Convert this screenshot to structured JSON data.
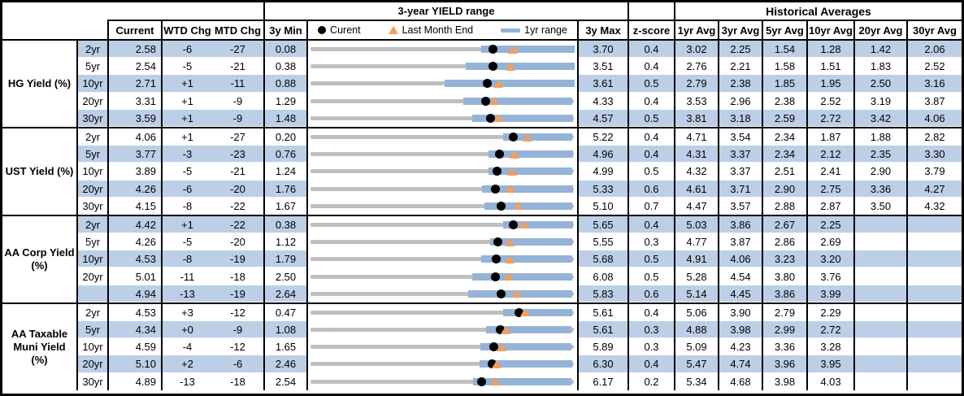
{
  "header": {
    "chart_group_title": "3-year YIELD range",
    "historical_group_title": "Historical Averages",
    "columns": {
      "current": "Current",
      "wtd": "WTD Chg",
      "mtd": "MTD Chg",
      "min3y": "3y Min",
      "max3y": "3y Max",
      "zscore": "z-score",
      "avg1": "1yr Avg",
      "avg3": "3yr Avg",
      "avg5": "5yr Avg",
      "avg10": "10yr Avg",
      "avg20": "20yr Avg",
      "avg30": "30yr Avg"
    },
    "legend": {
      "current": "Curent",
      "last_month_end": "Last Month End",
      "range_1yr": "1yr range"
    }
  },
  "colors": {
    "stripe": "#BCCFE6",
    "bar_1yr_range": "#95B3D7",
    "track_3yr_range": "#BFBFBF",
    "marker_last_month_end": "#F49E5C",
    "marker_current": "#000000"
  },
  "sections": [
    {
      "label": "HG Yield (%)",
      "rows": [
        {
          "tenor": "2yr",
          "current": "2.58",
          "wtd": "-6",
          "mtd": "-27",
          "min3y": "0.08",
          "max3y": "3.70",
          "zscore": "0.4",
          "avg1": "3.02",
          "avg3": "2.25",
          "avg5": "1.54",
          "avg10": "1.28",
          "avg20": "1.42",
          "avg30": "2.06"
        },
        {
          "tenor": "5yr",
          "current": "2.54",
          "wtd": "-5",
          "mtd": "-21",
          "min3y": "0.38",
          "max3y": "3.51",
          "zscore": "0.4",
          "avg1": "2.76",
          "avg3": "2.21",
          "avg5": "1.58",
          "avg10": "1.51",
          "avg20": "1.83",
          "avg30": "2.52"
        },
        {
          "tenor": "10yr",
          "current": "2.71",
          "wtd": "+1",
          "mtd": "-11",
          "min3y": "0.88",
          "max3y": "3.61",
          "zscore": "0.5",
          "avg1": "2.79",
          "avg3": "2.38",
          "avg5": "1.85",
          "avg10": "1.95",
          "avg20": "2.50",
          "avg30": "3.16"
        },
        {
          "tenor": "20yr",
          "current": "3.31",
          "wtd": "+1",
          "mtd": "-9",
          "min3y": "1.29",
          "max3y": "4.33",
          "zscore": "0.4",
          "avg1": "3.53",
          "avg3": "2.96",
          "avg5": "2.38",
          "avg10": "2.52",
          "avg20": "3.19",
          "avg30": "3.87"
        },
        {
          "tenor": "30yr",
          "current": "3.59",
          "wtd": "+1",
          "mtd": "-9",
          "min3y": "1.48",
          "max3y": "4.57",
          "zscore": "0.5",
          "avg1": "3.81",
          "avg3": "3.18",
          "avg5": "2.59",
          "avg10": "2.72",
          "avg20": "3.42",
          "avg30": "4.06"
        }
      ]
    },
    {
      "label": "UST Yield (%)",
      "rows": [
        {
          "tenor": "2yr",
          "current": "4.06",
          "wtd": "+1",
          "mtd": "-27",
          "min3y": "0.20",
          "max3y": "5.22",
          "zscore": "0.4",
          "avg1": "4.71",
          "avg3": "3.54",
          "avg5": "2.34",
          "avg10": "1.87",
          "avg20": "1.88",
          "avg30": "2.82"
        },
        {
          "tenor": "5yr",
          "current": "3.77",
          "wtd": "-3",
          "mtd": "-23",
          "min3y": "0.76",
          "max3y": "4.96",
          "zscore": "0.4",
          "avg1": "4.31",
          "avg3": "3.37",
          "avg5": "2.34",
          "avg10": "2.12",
          "avg20": "2.35",
          "avg30": "3.30"
        },
        {
          "tenor": "10yr",
          "current": "3.89",
          "wtd": "-5",
          "mtd": "-21",
          "min3y": "1.24",
          "max3y": "4.99",
          "zscore": "0.5",
          "avg1": "4.32",
          "avg3": "3.37",
          "avg5": "2.51",
          "avg10": "2.41",
          "avg20": "2.90",
          "avg30": "3.79"
        },
        {
          "tenor": "20yr",
          "current": "4.26",
          "wtd": "-6",
          "mtd": "-20",
          "min3y": "1.76",
          "max3y": "5.33",
          "zscore": "0.6",
          "avg1": "4.61",
          "avg3": "3.71",
          "avg5": "2.90",
          "avg10": "2.75",
          "avg20": "3.36",
          "avg30": "4.27"
        },
        {
          "tenor": "30yr",
          "current": "4.15",
          "wtd": "-8",
          "mtd": "-22",
          "min3y": "1.67",
          "max3y": "5.10",
          "zscore": "0.7",
          "avg1": "4.47",
          "avg3": "3.57",
          "avg5": "2.88",
          "avg10": "2.87",
          "avg20": "3.50",
          "avg30": "4.32"
        }
      ]
    },
    {
      "label": "AA Corp Yield\n(%)",
      "rows": [
        {
          "tenor": "2yr",
          "current": "4.42",
          "wtd": "+1",
          "mtd": "-22",
          "min3y": "0.38",
          "max3y": "5.65",
          "zscore": "0.4",
          "avg1": "5.03",
          "avg3": "3.86",
          "avg5": "2.67",
          "avg10": "2.25",
          "avg20": "",
          "avg30": ""
        },
        {
          "tenor": "5yr",
          "current": "4.26",
          "wtd": "-5",
          "mtd": "-20",
          "min3y": "1.12",
          "max3y": "5.55",
          "zscore": "0.3",
          "avg1": "4.77",
          "avg3": "3.87",
          "avg5": "2.86",
          "avg10": "2.69",
          "avg20": "",
          "avg30": ""
        },
        {
          "tenor": "10yr",
          "current": "4.53",
          "wtd": "-8",
          "mtd": "-19",
          "min3y": "1.79",
          "max3y": "5.68",
          "zscore": "0.5",
          "avg1": "4.91",
          "avg3": "4.06",
          "avg5": "3.23",
          "avg10": "3.20",
          "avg20": "",
          "avg30": ""
        },
        {
          "tenor": "20yr",
          "current": "5.01",
          "wtd": "-11",
          "mtd": "-18",
          "min3y": "2.50",
          "max3y": "6.08",
          "zscore": "0.5",
          "avg1": "5.28",
          "avg3": "4.54",
          "avg5": "3.80",
          "avg10": "3.76",
          "avg20": "",
          "avg30": ""
        },
        {
          "tenor": "",
          "current": "4.94",
          "wtd": "-13",
          "mtd": "-19",
          "min3y": "2.64",
          "max3y": "5.83",
          "zscore": "0.6",
          "avg1": "5.14",
          "avg3": "4.45",
          "avg5": "3.86",
          "avg10": "3.99",
          "avg20": "",
          "avg30": ""
        }
      ]
    },
    {
      "label": "AA Taxable\nMuni Yield\n(%)",
      "rows": [
        {
          "tenor": "2yr",
          "current": "4.53",
          "wtd": "+3",
          "mtd": "-12",
          "min3y": "0.47",
          "max3y": "5.61",
          "zscore": "0.4",
          "avg1": "5.06",
          "avg3": "3.90",
          "avg5": "2.79",
          "avg10": "2.29",
          "avg20": "",
          "avg30": ""
        },
        {
          "tenor": "5yr",
          "current": "4.34",
          "wtd": "+0",
          "mtd": "-9",
          "min3y": "1.08",
          "max3y": "5.61",
          "zscore": "0.3",
          "avg1": "4.88",
          "avg3": "3.98",
          "avg5": "2.99",
          "avg10": "2.72",
          "avg20": "",
          "avg30": ""
        },
        {
          "tenor": "10yr",
          "current": "4.59",
          "wtd": "-4",
          "mtd": "-12",
          "min3y": "1.65",
          "max3y": "5.89",
          "zscore": "0.3",
          "avg1": "5.09",
          "avg3": "4.23",
          "avg5": "3.36",
          "avg10": "3.28",
          "avg20": "",
          "avg30": ""
        },
        {
          "tenor": "20yr",
          "current": "5.10",
          "wtd": "+2",
          "mtd": "-6",
          "min3y": "2.46",
          "max3y": "6.30",
          "zscore": "0.4",
          "avg1": "5.47",
          "avg3": "4.74",
          "avg5": "3.96",
          "avg10": "3.95",
          "avg20": "",
          "avg30": ""
        },
        {
          "tenor": "30yr",
          "current": "4.89",
          "wtd": "-13",
          "mtd": "-18",
          "min3y": "2.54",
          "max3y": "6.17",
          "zscore": "0.2",
          "avg1": "5.34",
          "avg3": "4.68",
          "avg5": "3.98",
          "avg10": "4.03",
          "avg20": "",
          "avg30": ""
        }
      ]
    }
  ],
  "chart_data": {
    "type": "bar",
    "subtype": "horizontal_floating_range_with_markers",
    "title": "3-year YIELD range",
    "legend_position": "top",
    "legend": [
      "Curent (dot)",
      "Last Month End (triangle)",
      "1yr range (blue bar)"
    ],
    "axis": "each row scaled from its own 3y Min to 3y Max",
    "rows": [
      {
        "group": "HG Yield (%)",
        "tenor": "2yr",
        "min_3y": 0.08,
        "max_3y": 3.7,
        "current": 2.58,
        "last_month_end": 2.85,
        "range_1yr": [
          2.42,
          3.7
        ]
      },
      {
        "group": "HG Yield (%)",
        "tenor": "5yr",
        "min_3y": 0.38,
        "max_3y": 3.51,
        "current": 2.54,
        "last_month_end": 2.75,
        "range_1yr": [
          2.22,
          3.51
        ]
      },
      {
        "group": "HG Yield (%)",
        "tenor": "10yr",
        "min_3y": 0.88,
        "max_3y": 3.61,
        "current": 2.71,
        "last_month_end": 2.82,
        "range_1yr": [
          2.27,
          3.61
        ]
      },
      {
        "group": "HG Yield (%)",
        "tenor": "20yr",
        "min_3y": 1.29,
        "max_3y": 4.33,
        "current": 3.31,
        "last_month_end": 3.4,
        "range_1yr": [
          3.05,
          4.3
        ]
      },
      {
        "group": "HG Yield (%)",
        "tenor": "30yr",
        "min_3y": 1.48,
        "max_3y": 4.57,
        "current": 3.59,
        "last_month_end": 3.68,
        "range_1yr": [
          3.37,
          4.55
        ]
      },
      {
        "group": "UST Yield (%)",
        "tenor": "2yr",
        "min_3y": 0.2,
        "max_3y": 5.22,
        "current": 4.06,
        "last_month_end": 4.33,
        "range_1yr": [
          3.86,
          5.18
        ]
      },
      {
        "group": "UST Yield (%)",
        "tenor": "5yr",
        "min_3y": 0.76,
        "max_3y": 4.96,
        "current": 3.77,
        "last_month_end": 4.0,
        "range_1yr": [
          3.59,
          4.93
        ]
      },
      {
        "group": "UST Yield (%)",
        "tenor": "10yr",
        "min_3y": 1.24,
        "max_3y": 4.99,
        "current": 3.89,
        "last_month_end": 4.1,
        "range_1yr": [
          3.77,
          4.95
        ]
      },
      {
        "group": "UST Yield (%)",
        "tenor": "20yr",
        "min_3y": 1.76,
        "max_3y": 5.33,
        "current": 4.26,
        "last_month_end": 4.46,
        "range_1yr": [
          4.08,
          5.31
        ]
      },
      {
        "group": "UST Yield (%)",
        "tenor": "30yr",
        "min_3y": 1.67,
        "max_3y": 5.1,
        "current": 4.15,
        "last_month_end": 4.37,
        "range_1yr": [
          3.93,
          5.07
        ]
      },
      {
        "group": "AA Corp Yield (%)",
        "tenor": "2yr",
        "min_3y": 0.38,
        "max_3y": 5.65,
        "current": 4.42,
        "last_month_end": 4.64,
        "range_1yr": [
          4.23,
          5.61
        ]
      },
      {
        "group": "AA Corp Yield (%)",
        "tenor": "5yr",
        "min_3y": 1.12,
        "max_3y": 5.55,
        "current": 4.26,
        "last_month_end": 4.46,
        "range_1yr": [
          4.13,
          5.51
        ]
      },
      {
        "group": "AA Corp Yield (%)",
        "tenor": "10yr",
        "min_3y": 1.79,
        "max_3y": 5.68,
        "current": 4.53,
        "last_month_end": 4.72,
        "range_1yr": [
          4.3,
          5.65
        ]
      },
      {
        "group": "AA Corp Yield (%)",
        "tenor": "20yr",
        "min_3y": 2.5,
        "max_3y": 6.08,
        "current": 5.01,
        "last_month_end": 5.19,
        "range_1yr": [
          4.69,
          6.05
        ]
      },
      {
        "group": "AA Corp Yield (%)",
        "tenor": "",
        "min_3y": 2.64,
        "max_3y": 5.83,
        "current": 4.94,
        "last_month_end": 5.13,
        "range_1yr": [
          4.54,
          5.8
        ]
      },
      {
        "group": "AA Taxable Muni Yield (%)",
        "tenor": "2yr",
        "min_3y": 0.47,
        "max_3y": 5.61,
        "current": 4.53,
        "last_month_end": 4.65,
        "range_1yr": [
          4.22,
          5.57
        ]
      },
      {
        "group": "AA Taxable Muni Yield (%)",
        "tenor": "5yr",
        "min_3y": 1.08,
        "max_3y": 5.61,
        "current": 4.34,
        "last_month_end": 4.43,
        "range_1yr": [
          4.09,
          5.56
        ]
      },
      {
        "group": "AA Taxable Muni Yield (%)",
        "tenor": "10yr",
        "min_3y": 1.65,
        "max_3y": 5.89,
        "current": 4.59,
        "last_month_end": 4.71,
        "range_1yr": [
          4.38,
          5.84
        ]
      },
      {
        "group": "AA Taxable Muni Yield (%)",
        "tenor": "20yr",
        "min_3y": 2.46,
        "max_3y": 6.3,
        "current": 5.1,
        "last_month_end": 5.16,
        "range_1yr": [
          4.92,
          6.27
        ]
      },
      {
        "group": "AA Taxable Muni Yield (%)",
        "tenor": "30yr",
        "min_3y": 2.54,
        "max_3y": 6.17,
        "current": 4.89,
        "last_month_end": 5.07,
        "range_1yr": [
          4.77,
          6.13
        ]
      }
    ]
  }
}
